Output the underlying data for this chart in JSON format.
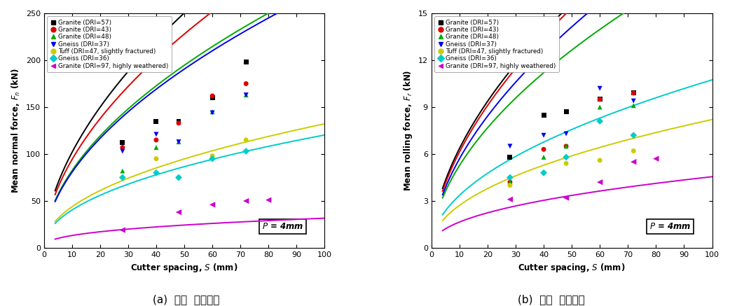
{
  "series": [
    {
      "label": "Granite (DRI=57)",
      "color": "#000000",
      "marker": "s",
      "pts_a": [
        [
          28,
          112
        ],
        [
          40,
          135
        ],
        [
          48,
          135
        ],
        [
          60,
          160
        ],
        [
          72,
          198
        ]
      ],
      "pts_b": [
        [
          28,
          5.8
        ],
        [
          40,
          8.5
        ],
        [
          48,
          8.7
        ],
        [
          60,
          9.5
        ],
        [
          72,
          9.9
        ]
      ],
      "fit_a": {
        "C": 28.0,
        "alpha": 0.56
      },
      "fit_b": {
        "C": 1.75,
        "alpha": 0.56
      }
    },
    {
      "label": "Granite (DRI=43)",
      "color": "#dd0000",
      "marker": "o",
      "pts_a": [
        [
          28,
          107
        ],
        [
          40,
          115
        ],
        [
          48,
          133
        ],
        [
          60,
          162
        ],
        [
          72,
          175
        ]
      ],
      "pts_b": [
        [
          28,
          4.2
        ],
        [
          40,
          6.3
        ],
        [
          48,
          6.5
        ],
        [
          60,
          9.5
        ],
        [
          72,
          9.9
        ]
      ],
      "fit_a": {
        "C": 26.5,
        "alpha": 0.55
      },
      "fit_b": {
        "C": 1.65,
        "alpha": 0.57
      }
    },
    {
      "label": "Granite (DRI=48)",
      "color": "#00aa00",
      "marker": "^",
      "pts_a": [
        [
          28,
          82
        ],
        [
          40,
          107
        ],
        [
          48,
          113
        ],
        [
          60,
          145
        ],
        [
          72,
          163
        ]
      ],
      "pts_b": [
        [
          28,
          4.2
        ],
        [
          40,
          5.8
        ],
        [
          48,
          6.5
        ],
        [
          60,
          9.0
        ],
        [
          72,
          9.1
        ]
      ],
      "fit_a": {
        "C": 24.0,
        "alpha": 0.535
      },
      "fit_b": {
        "C": 1.5,
        "alpha": 0.545
      }
    },
    {
      "label": "Gneiss (DRI=37)",
      "color": "#0000ee",
      "marker": "v",
      "pts_a": [
        [
          28,
          103
        ],
        [
          40,
          121
        ],
        [
          48,
          113
        ],
        [
          60,
          144
        ],
        [
          72,
          163
        ]
      ],
      "pts_b": [
        [
          28,
          6.5
        ],
        [
          40,
          7.2
        ],
        [
          48,
          7.3
        ],
        [
          60,
          10.2
        ],
        [
          72,
          9.4
        ]
      ],
      "fit_a": {
        "C": 23.5,
        "alpha": 0.535
      },
      "fit_b": {
        "C": 1.55,
        "alpha": 0.565
      }
    },
    {
      "label": "Tuff (DRI=47, slightly fractured)",
      "color": "#cccc00",
      "marker": "o",
      "pts_a": [
        [
          28,
          75
        ],
        [
          40,
          95
        ],
        [
          48,
          75
        ],
        [
          60,
          98
        ],
        [
          72,
          115
        ]
      ],
      "pts_b": [
        [
          28,
          4.0
        ],
        [
          40,
          4.8
        ],
        [
          48,
          5.4
        ],
        [
          60,
          5.6
        ],
        [
          72,
          6.2
        ]
      ],
      "fit_a": {
        "C": 14.5,
        "alpha": 0.48
      },
      "fit_b": {
        "C": 0.9,
        "alpha": 0.48
      }
    },
    {
      "label": "Gneiss (DRI=36)",
      "color": "#00cccc",
      "marker": "D",
      "pts_a": [
        [
          28,
          75
        ],
        [
          40,
          80
        ],
        [
          48,
          75
        ],
        [
          60,
          95
        ],
        [
          72,
          103
        ]
      ],
      "pts_b": [
        [
          28,
          4.5
        ],
        [
          40,
          4.8
        ],
        [
          48,
          5.8
        ],
        [
          60,
          8.1
        ],
        [
          72,
          7.2
        ]
      ],
      "fit_a": {
        "C": 13.5,
        "alpha": 0.475
      },
      "fit_b": {
        "C": 1.05,
        "alpha": 0.505
      }
    },
    {
      "label": "Granite (DRI=97, highly weathered)",
      "color": "#cc00cc",
      "marker": "<",
      "pts_a": [
        [
          28,
          19
        ],
        [
          48,
          38
        ],
        [
          60,
          46
        ],
        [
          72,
          50
        ],
        [
          80,
          51
        ]
      ],
      "pts_b": [
        [
          28,
          3.1
        ],
        [
          48,
          3.2
        ],
        [
          60,
          4.2
        ],
        [
          72,
          5.5
        ],
        [
          80,
          5.7
        ]
      ],
      "fit_a": {
        "C": 5.5,
        "alpha": 0.38
      },
      "fit_b": {
        "C": 0.6,
        "alpha": 0.44
      }
    }
  ],
  "xlim": [
    0,
    100
  ],
  "ylim_a": [
    0,
    250
  ],
  "ylim_b": [
    0,
    15
  ],
  "xlabel": "Cutter spacing, $\\mathit{S}$ (mm)",
  "ylabel_a": "Mean normal force, $\\mathit{F_n}$ (kN)",
  "ylabel_b": "Mean rolling force, $\\mathit{F_r}$ (kN)",
  "caption_a": "(a)  커터  연직하중",
  "caption_b": "(b)  커터  회전하중",
  "annotation": "$\\mathit{P}$ = 4mm",
  "xticks": [
    0,
    10,
    20,
    30,
    40,
    50,
    60,
    70,
    80,
    90,
    100
  ],
  "yticks_a": [
    0,
    50,
    100,
    150,
    200,
    250
  ],
  "yticks_b": [
    0,
    3,
    6,
    9,
    12,
    15
  ],
  "curve_x_start": 4.0,
  "bg_color": "#ffffff"
}
